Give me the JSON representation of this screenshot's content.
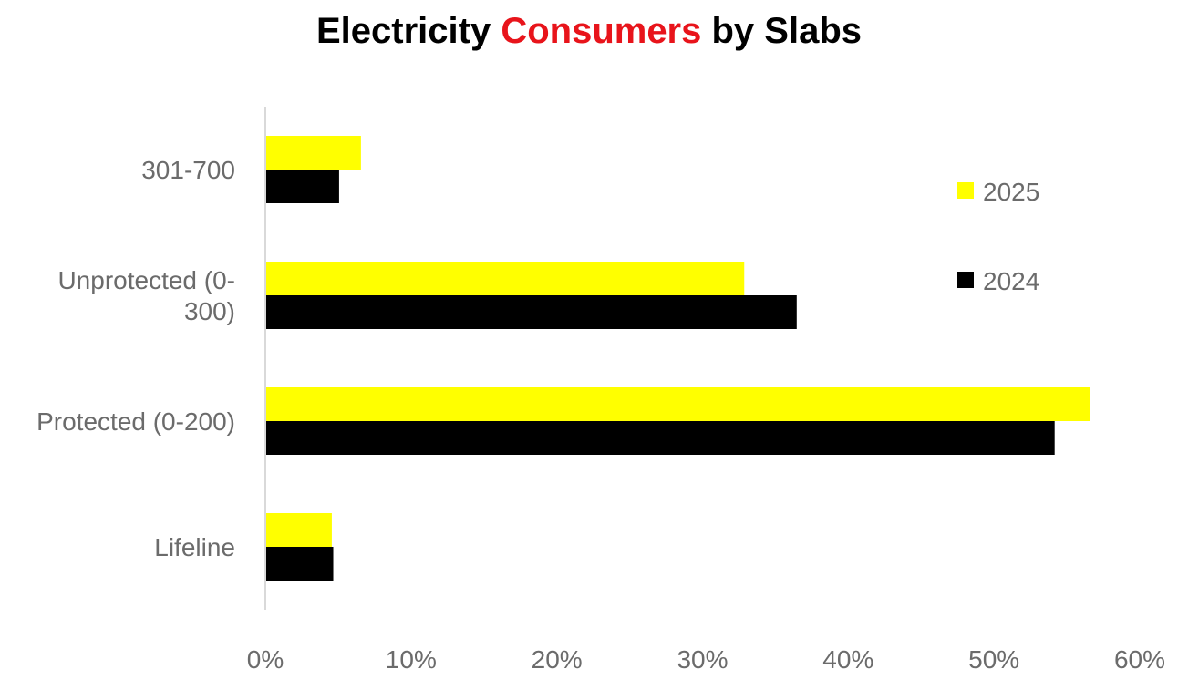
{
  "chart_data": {
    "type": "bar",
    "orientation": "horizontal",
    "title": {
      "parts": [
        {
          "text": "Electricity ",
          "color": "#000000"
        },
        {
          "text": "Consumers",
          "color": "#e8141b"
        },
        {
          "text": " by Slabs",
          "color": "#000000"
        }
      ]
    },
    "categories": [
      "301-700",
      "Unprotected (0-300)",
      "Protected (0-200)",
      "Lifeline"
    ],
    "category_label_lines": [
      [
        "301-700"
      ],
      [
        "Unprotected (0-",
        "300)"
      ],
      [
        "Protected (0-200)"
      ],
      [
        "Lifeline"
      ]
    ],
    "series": [
      {
        "name": "2025",
        "color": "#ffff00",
        "values": [
          6.5,
          32.8,
          56.5,
          4.5
        ]
      },
      {
        "name": "2024",
        "color": "#000000",
        "values": [
          5.0,
          36.4,
          54.1,
          4.6
        ]
      }
    ],
    "xlim": [
      0,
      60
    ],
    "xticks": [
      0,
      10,
      20,
      30,
      40,
      50,
      60
    ],
    "xtick_labels": [
      "0%",
      "10%",
      "20%",
      "30%",
      "40%",
      "50%",
      "60%"
    ],
    "xlabel": "",
    "ylabel": "",
    "grid": false,
    "legend_position": "right"
  }
}
